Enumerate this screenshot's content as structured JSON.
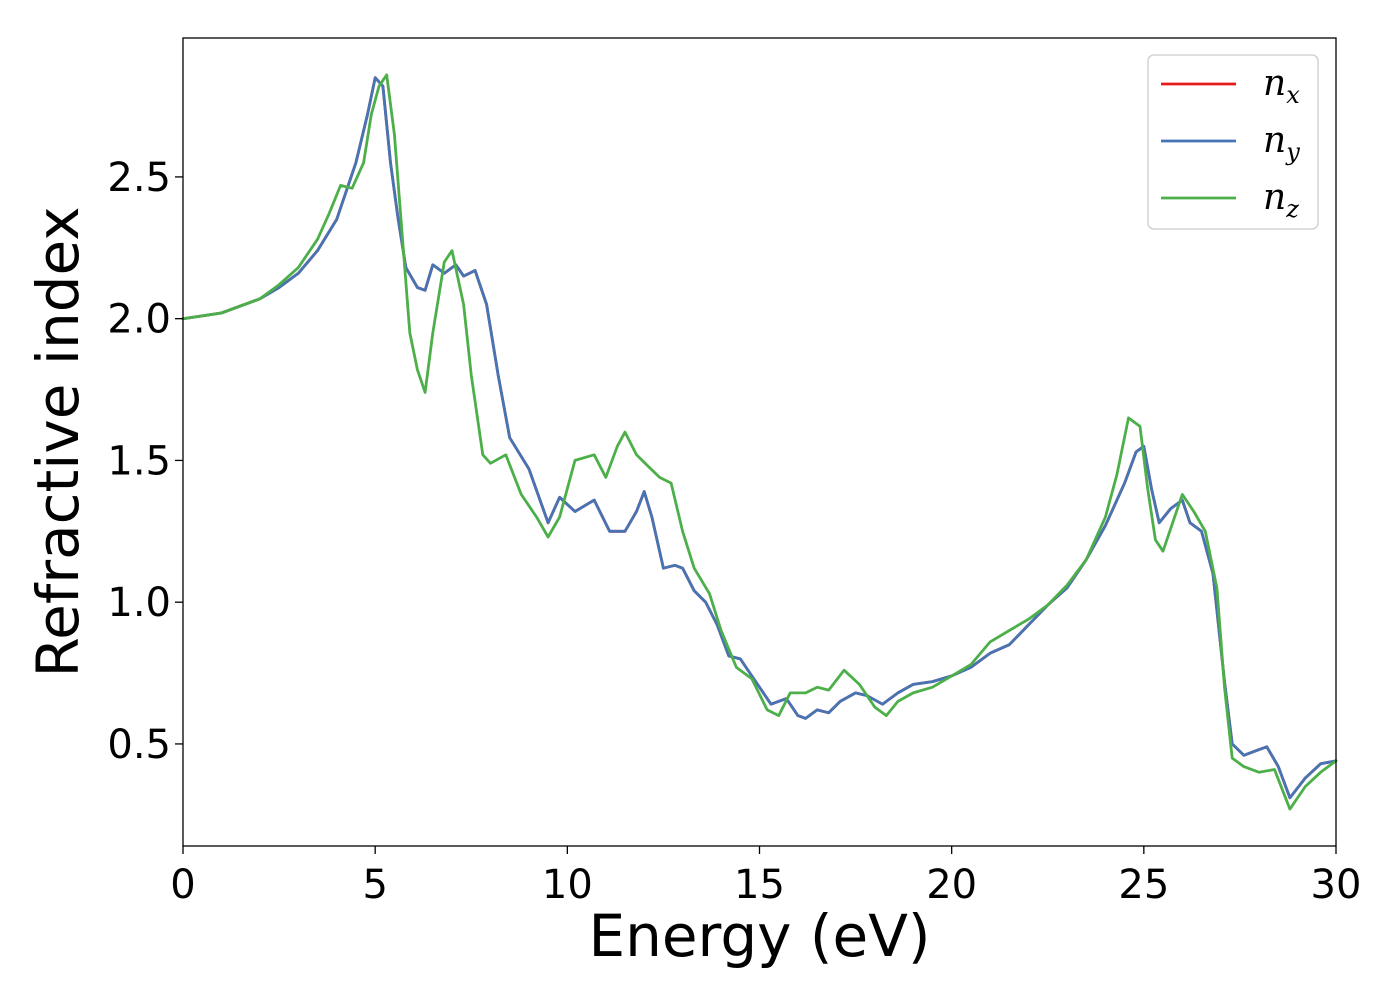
{
  "chart_data": {
    "type": "line",
    "xlabel": "Energy (eV)",
    "ylabel": "Refractive index",
    "xlim": [
      0,
      30
    ],
    "ylim": [
      0.14,
      2.99
    ],
    "xticks": [
      0,
      5,
      10,
      15,
      20,
      25,
      30
    ],
    "yticks": [
      0.5,
      1.0,
      1.5,
      2.0,
      2.5
    ],
    "xtick_labels": [
      "0",
      "5",
      "10",
      "15",
      "20",
      "25",
      "30"
    ],
    "ytick_labels": [
      "0.5",
      "1.0",
      "1.5",
      "2.0",
      "2.5"
    ],
    "grid": false,
    "legend_position": "top-right",
    "series": [
      {
        "name": "n_x",
        "legend_base": "n",
        "legend_sub": "x",
        "color": "#e41a1c",
        "x": [
          0,
          1,
          2,
          2.5,
          3,
          3.5,
          4,
          4.5,
          4.8,
          5.0,
          5.2,
          5.4,
          5.6,
          5.8,
          6.1,
          6.3,
          6.5,
          6.8,
          7.1,
          7.3,
          7.6,
          7.9,
          8.2,
          8.5,
          9.0,
          9.5,
          9.8,
          10.2,
          10.7,
          11.1,
          11.5,
          11.8,
          12.0,
          12.2,
          12.5,
          12.8,
          13.0,
          13.3,
          13.6,
          13.9,
          14.2,
          14.5,
          14.9,
          15.3,
          15.7,
          16.0,
          16.2,
          16.5,
          16.8,
          17.1,
          17.5,
          17.8,
          18.2,
          18.6,
          19.0,
          19.5,
          20.0,
          20.5,
          21.0,
          21.5,
          22.0,
          22.5,
          23.0,
          23.5,
          24.0,
          24.5,
          24.8,
          25.0,
          25.2,
          25.4,
          25.7,
          26.0,
          26.2,
          26.5,
          26.8,
          27.1,
          27.3,
          27.6,
          28.0,
          28.2,
          28.5,
          28.8,
          29.2,
          29.6,
          30.0
        ],
        "y": [
          2.0,
          2.02,
          2.07,
          2.11,
          2.16,
          2.24,
          2.35,
          2.55,
          2.72,
          2.85,
          2.82,
          2.55,
          2.35,
          2.18,
          2.11,
          2.1,
          2.19,
          2.16,
          2.19,
          2.15,
          2.17,
          2.05,
          1.8,
          1.58,
          1.47,
          1.28,
          1.37,
          1.32,
          1.36,
          1.25,
          1.25,
          1.32,
          1.39,
          1.3,
          1.12,
          1.13,
          1.12,
          1.04,
          1.0,
          0.92,
          0.81,
          0.8,
          0.72,
          0.64,
          0.66,
          0.6,
          0.59,
          0.62,
          0.61,
          0.65,
          0.68,
          0.67,
          0.64,
          0.68,
          0.71,
          0.72,
          0.74,
          0.77,
          0.82,
          0.85,
          0.92,
          0.99,
          1.05,
          1.15,
          1.27,
          1.42,
          1.53,
          1.55,
          1.4,
          1.28,
          1.33,
          1.36,
          1.28,
          1.25,
          1.1,
          0.72,
          0.5,
          0.46,
          0.48,
          0.49,
          0.42,
          0.31,
          0.38,
          0.43,
          0.44
        ]
      },
      {
        "name": "n_y",
        "legend_base": "n",
        "legend_sub": "y",
        "color": "#4575b4",
        "x": [
          0,
          1,
          2,
          2.5,
          3,
          3.5,
          4,
          4.5,
          4.8,
          5.0,
          5.2,
          5.4,
          5.6,
          5.8,
          6.1,
          6.3,
          6.5,
          6.8,
          7.1,
          7.3,
          7.6,
          7.9,
          8.2,
          8.5,
          9.0,
          9.5,
          9.8,
          10.2,
          10.7,
          11.1,
          11.5,
          11.8,
          12.0,
          12.2,
          12.5,
          12.8,
          13.0,
          13.3,
          13.6,
          13.9,
          14.2,
          14.5,
          14.9,
          15.3,
          15.7,
          16.0,
          16.2,
          16.5,
          16.8,
          17.1,
          17.5,
          17.8,
          18.2,
          18.6,
          19.0,
          19.5,
          20.0,
          20.5,
          21.0,
          21.5,
          22.0,
          22.5,
          23.0,
          23.5,
          24.0,
          24.5,
          24.8,
          25.0,
          25.2,
          25.4,
          25.7,
          26.0,
          26.2,
          26.5,
          26.8,
          27.1,
          27.3,
          27.6,
          28.0,
          28.2,
          28.5,
          28.8,
          29.2,
          29.6,
          30.0
        ],
        "y": [
          2.0,
          2.02,
          2.07,
          2.11,
          2.16,
          2.24,
          2.35,
          2.55,
          2.72,
          2.85,
          2.82,
          2.55,
          2.35,
          2.18,
          2.11,
          2.1,
          2.19,
          2.16,
          2.19,
          2.15,
          2.17,
          2.05,
          1.8,
          1.58,
          1.47,
          1.28,
          1.37,
          1.32,
          1.36,
          1.25,
          1.25,
          1.32,
          1.39,
          1.3,
          1.12,
          1.13,
          1.12,
          1.04,
          1.0,
          0.92,
          0.81,
          0.8,
          0.72,
          0.64,
          0.66,
          0.6,
          0.59,
          0.62,
          0.61,
          0.65,
          0.68,
          0.67,
          0.64,
          0.68,
          0.71,
          0.72,
          0.74,
          0.77,
          0.82,
          0.85,
          0.92,
          0.99,
          1.05,
          1.15,
          1.27,
          1.42,
          1.53,
          1.55,
          1.4,
          1.28,
          1.33,
          1.36,
          1.28,
          1.25,
          1.1,
          0.72,
          0.5,
          0.46,
          0.48,
          0.49,
          0.42,
          0.31,
          0.38,
          0.43,
          0.44
        ]
      },
      {
        "name": "n_z",
        "legend_base": "n",
        "legend_sub": "z",
        "color": "#4daf4a",
        "x": [
          0,
          1,
          2,
          2.5,
          3,
          3.5,
          3.8,
          4.1,
          4.4,
          4.7,
          4.9,
          5.1,
          5.3,
          5.5,
          5.7,
          5.9,
          6.1,
          6.3,
          6.5,
          6.8,
          7.0,
          7.3,
          7.5,
          7.8,
          8.0,
          8.4,
          8.8,
          9.2,
          9.5,
          9.8,
          10.2,
          10.7,
          11.0,
          11.3,
          11.5,
          11.8,
          12.1,
          12.4,
          12.7,
          13.0,
          13.3,
          13.7,
          14.0,
          14.4,
          14.8,
          15.2,
          15.5,
          15.8,
          16.2,
          16.5,
          16.8,
          17.2,
          17.6,
          18.0,
          18.3,
          18.6,
          19.0,
          19.5,
          20.0,
          20.5,
          21.0,
          21.5,
          22.0,
          22.5,
          23.0,
          23.5,
          24.0,
          24.3,
          24.6,
          24.9,
          25.1,
          25.3,
          25.5,
          25.8,
          26.0,
          26.3,
          26.6,
          26.9,
          27.1,
          27.3,
          27.6,
          28.0,
          28.4,
          28.8,
          29.2,
          29.6,
          30.0
        ],
        "y": [
          2.0,
          2.02,
          2.07,
          2.12,
          2.18,
          2.28,
          2.37,
          2.47,
          2.46,
          2.55,
          2.72,
          2.82,
          2.86,
          2.65,
          2.3,
          1.95,
          1.82,
          1.74,
          1.95,
          2.2,
          2.24,
          2.05,
          1.8,
          1.52,
          1.49,
          1.52,
          1.38,
          1.3,
          1.23,
          1.3,
          1.5,
          1.52,
          1.44,
          1.55,
          1.6,
          1.52,
          1.48,
          1.44,
          1.42,
          1.25,
          1.12,
          1.03,
          0.9,
          0.77,
          0.73,
          0.62,
          0.6,
          0.68,
          0.68,
          0.7,
          0.69,
          0.76,
          0.71,
          0.63,
          0.6,
          0.65,
          0.68,
          0.7,
          0.74,
          0.78,
          0.86,
          0.9,
          0.94,
          0.99,
          1.06,
          1.15,
          1.3,
          1.45,
          1.65,
          1.62,
          1.4,
          1.22,
          1.18,
          1.3,
          1.38,
          1.32,
          1.25,
          1.05,
          0.7,
          0.45,
          0.42,
          0.4,
          0.41,
          0.27,
          0.35,
          0.4,
          0.44
        ]
      }
    ]
  }
}
